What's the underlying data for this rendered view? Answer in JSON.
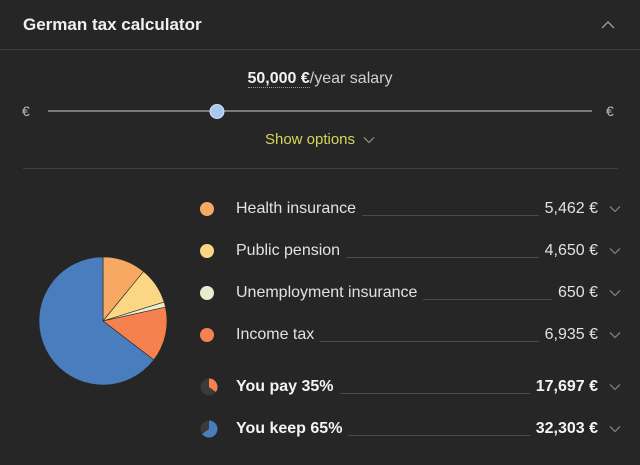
{
  "header": {
    "title": "German tax calculator"
  },
  "salary": {
    "amount": "50,000 €",
    "suffix": "/year salary",
    "min_symbol": "€",
    "max_symbol": "€",
    "slider_fraction": 0.31
  },
  "options": {
    "label": "Show options"
  },
  "breakdown": [
    {
      "label": "Health insurance",
      "value": "5,462 €",
      "color": "#f7a862"
    },
    {
      "label": "Public pension",
      "value": "4,650 €",
      "color": "#fbd684"
    },
    {
      "label": "Unemployment insurance",
      "value": "650 €",
      "color": "#e9edcf"
    },
    {
      "label": "Income tax",
      "value": "6,935 €",
      "color": "#f5824e"
    }
  ],
  "totals": {
    "pay": {
      "label": "You pay 35%",
      "value": "17,697 €",
      "fraction": 0.35,
      "color": "#f5824e"
    },
    "keep": {
      "label": "You keep 65%",
      "value": "32,303 €",
      "fraction": 0.65,
      "color": "#4a7dbd"
    }
  },
  "pie": {
    "segments": [
      {
        "name": "health-insurance",
        "value": 5462,
        "color": "#f7a862"
      },
      {
        "name": "public-pension",
        "value": 4650,
        "color": "#fbd684"
      },
      {
        "name": "unemployment-insurance",
        "value": 650,
        "color": "#e9edcf"
      },
      {
        "name": "income-tax",
        "value": 6935,
        "color": "#f5824e"
      },
      {
        "name": "take-home",
        "value": 32303,
        "color": "#4a7dbd"
      }
    ]
  }
}
